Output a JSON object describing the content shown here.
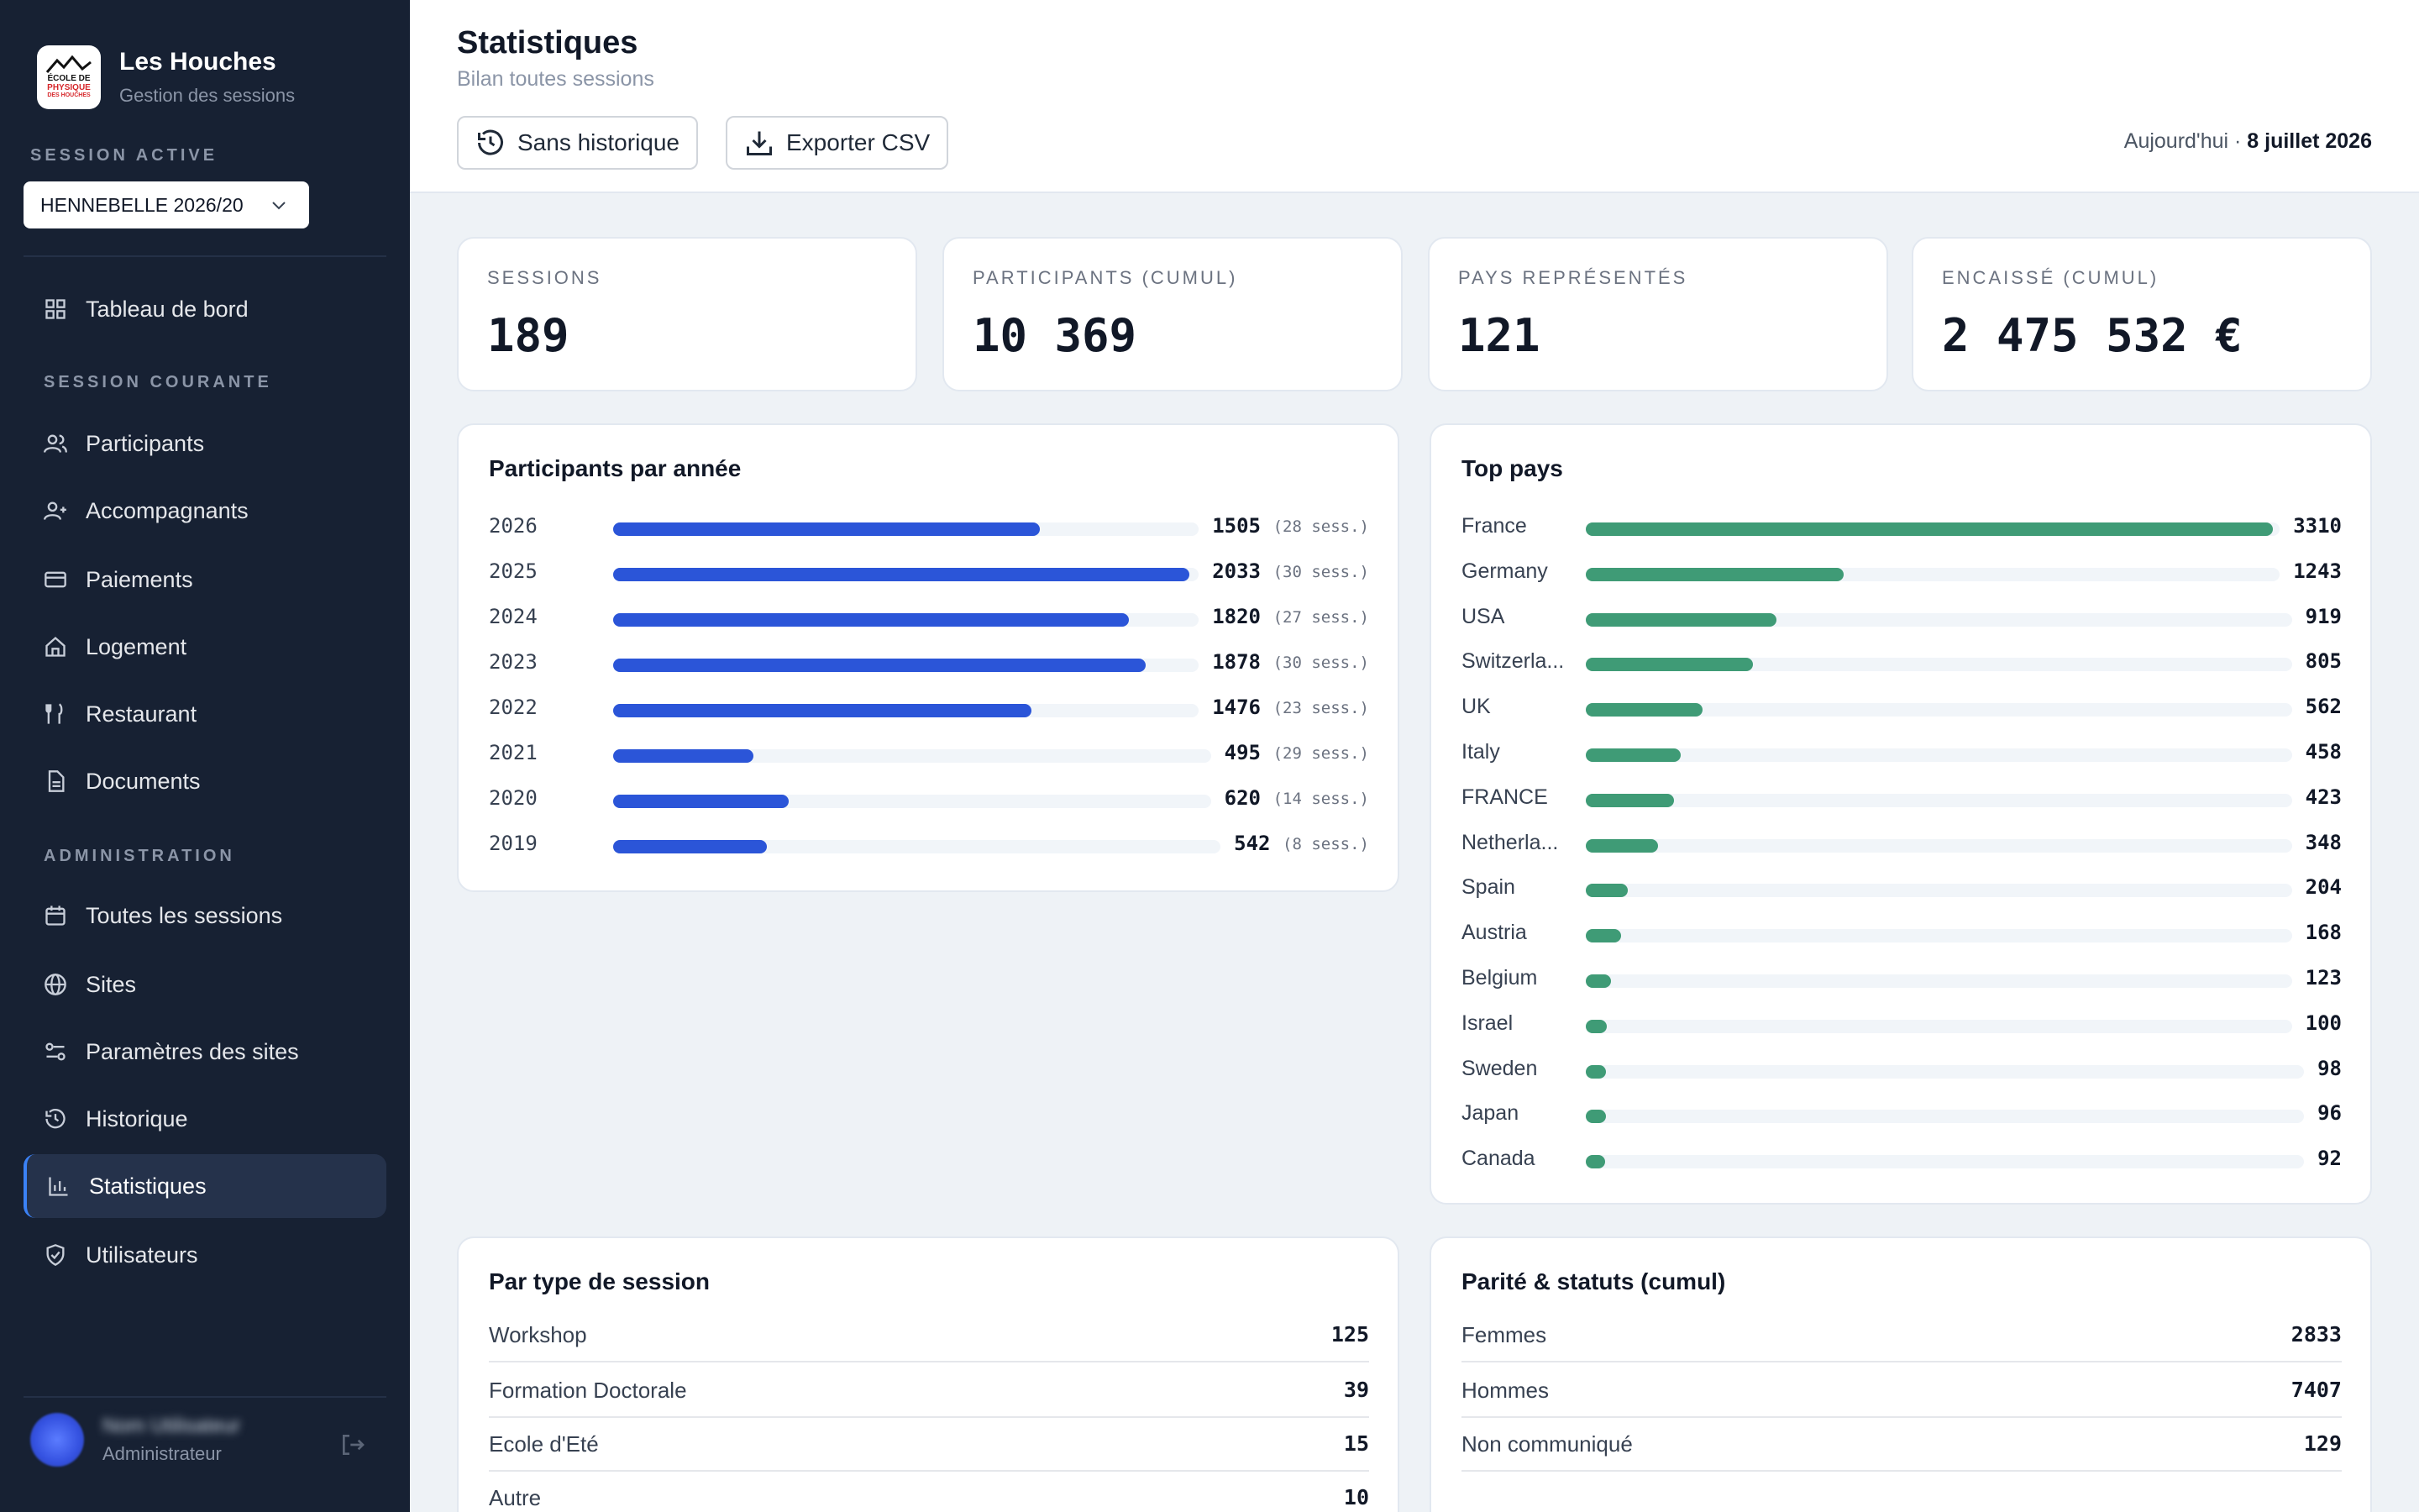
{
  "sidebar": {
    "brand_title": "Les Houches",
    "brand_subtitle": "Gestion des sessions",
    "logo_text": [
      "ÉCOLE DE",
      "PHYSIQUE",
      "DES HOUCHES"
    ],
    "session_active_label": "SESSION ACTIVE",
    "session_select_value": "HENNEBELLE 2026/20",
    "dashboard": "Tableau de bord",
    "section_current": "SESSION COURANTE",
    "current_items": [
      "Participants",
      "Accompagnants",
      "Paiements",
      "Logement",
      "Restaurant",
      "Documents"
    ],
    "section_admin": "ADMINISTRATION",
    "admin_items": [
      "Toutes les sessions",
      "Sites",
      "Paramètres des sites",
      "Historique",
      "Statistiques",
      "Utilisateurs"
    ],
    "active_item": "Statistiques",
    "user_name": "Nom Utilisateur",
    "user_role": "Administrateur"
  },
  "header": {
    "title": "Statistiques",
    "subtitle": "Bilan toutes sessions",
    "btn_history": "Sans historique",
    "btn_export": "Exporter CSV",
    "today_label": "Aujourd'hui · ",
    "today_date": "8 juillet 2026"
  },
  "kpis": [
    {
      "label": "SESSIONS",
      "value": "189"
    },
    {
      "label": "PARTICIPANTS (CUMUL)",
      "value": "10 369"
    },
    {
      "label": "PAYS REPRÉSENTÉS",
      "value": "121"
    },
    {
      "label": "ENCAISSÉ (CUMUL)",
      "value": "2 475 532 €"
    }
  ],
  "colors": {
    "year_bar": "#2b55d8",
    "country_bar": "#3f9b76",
    "active_accent": "#3b82f6"
  },
  "chart_data": [
    {
      "type": "bar",
      "title": "Participants par année",
      "categories": [
        "2026",
        "2025",
        "2024",
        "2023",
        "2022",
        "2021",
        "2020",
        "2019"
      ],
      "values": [
        1505,
        2033,
        1820,
        1878,
        1476,
        495,
        620,
        542
      ],
      "annotations": [
        "(28 sess.)",
        "(30 sess.)",
        "(27 sess.)",
        "(30 sess.)",
        "(23 sess.)",
        "(29 sess.)",
        "(14 sess.)",
        "(8 sess.)"
      ],
      "orientation": "horizontal"
    },
    {
      "type": "bar",
      "title": "Top pays",
      "categories": [
        "France",
        "Germany",
        "USA",
        "Switzerla...",
        "UK",
        "Italy",
        "FRANCE",
        "Netherla...",
        "Spain",
        "Austria",
        "Belgium",
        "Israel",
        "Sweden",
        "Japan",
        "Canada"
      ],
      "values": [
        3310,
        1243,
        919,
        805,
        562,
        458,
        423,
        348,
        204,
        168,
        123,
        100,
        98,
        96,
        92
      ],
      "orientation": "horizontal"
    }
  ],
  "session_types": {
    "title": "Par type de session",
    "rows": [
      {
        "label": "Workshop",
        "value": "125"
      },
      {
        "label": "Formation Doctorale",
        "value": "39"
      },
      {
        "label": "Ecole d'Eté",
        "value": "15"
      },
      {
        "label": "Autre",
        "value": "10"
      }
    ]
  },
  "parity": {
    "title": "Parité & statuts (cumul)",
    "rows": [
      {
        "label": "Femmes",
        "value": "2833"
      },
      {
        "label": "Hommes",
        "value": "7407"
      },
      {
        "label": "Non communiqué",
        "value": "129"
      }
    ]
  }
}
